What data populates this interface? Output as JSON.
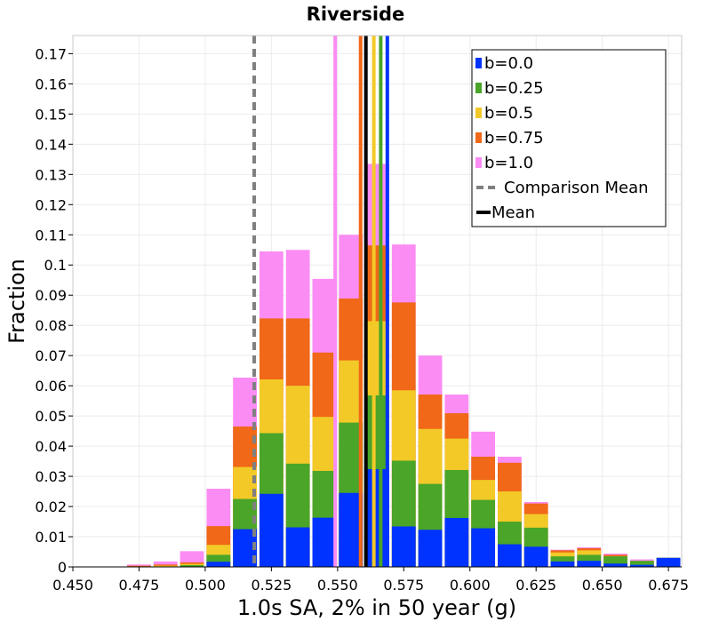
{
  "chart_data": {
    "type": "bar",
    "stacked": true,
    "title": "Riverside",
    "xlabel": "1.0s SA, 2% in 50 year (g)",
    "ylabel": "Fraction",
    "xlim": [
      0.45,
      0.68
    ],
    "ylim": [
      0,
      0.176
    ],
    "bin_width": 0.01,
    "x_ticks": [
      "0.450",
      "0.475",
      "0.500",
      "0.525",
      "0.550",
      "0.575",
      "0.600",
      "0.625",
      "0.650",
      "0.675"
    ],
    "x_tick_values": [
      0.45,
      0.475,
      0.5,
      0.525,
      0.55,
      0.575,
      0.6,
      0.625,
      0.65,
      0.675
    ],
    "y_ticks": [
      "0",
      "0.01",
      "0.02",
      "0.03",
      "0.04",
      "0.05",
      "0.06",
      "0.07",
      "0.08",
      "0.09",
      "0.1",
      "0.11",
      "0.12",
      "0.13",
      "0.14",
      "0.15",
      "0.16",
      "0.17"
    ],
    "y_tick_values": [
      0,
      0.01,
      0.02,
      0.03,
      0.04,
      0.05,
      0.06,
      0.07,
      0.08,
      0.09,
      0.1,
      0.11,
      0.12,
      0.13,
      0.14,
      0.15,
      0.16,
      0.17
    ],
    "grid": true,
    "legend_position": "top-right",
    "bin_centers": [
      0.455,
      0.465,
      0.475,
      0.485,
      0.495,
      0.505,
      0.515,
      0.525,
      0.535,
      0.545,
      0.555,
      0.565,
      0.575,
      0.585,
      0.595,
      0.605,
      0.615,
      0.625,
      0.635,
      0.645,
      0.655,
      0.665,
      0.675
    ],
    "series": [
      {
        "name": "b=0.0",
        "color": "#0033ff",
        "cumulative": [
          0,
          0,
          0,
          0,
          0,
          0.0017,
          0.0125,
          0.0242,
          0.0131,
          0.0163,
          0.0245,
          0.0324,
          0.0134,
          0.0123,
          0.0162,
          0.0128,
          0.0075,
          0.0067,
          0.0018,
          0.002,
          0.0011,
          0.0007,
          0.003
        ]
      },
      {
        "name": "b=0.25",
        "color": "#4aa528",
        "cumulative": [
          0,
          0,
          0,
          0,
          0.0006,
          0.004,
          0.0225,
          0.0443,
          0.0342,
          0.0318,
          0.0478,
          0.0568,
          0.0352,
          0.0275,
          0.0321,
          0.0222,
          0.015,
          0.013,
          0.0035,
          0.004,
          0.0035,
          0.002,
          0.003
        ]
      },
      {
        "name": "b=0.5",
        "color": "#f3c928",
        "cumulative": [
          0,
          0,
          0,
          0.0004,
          0.001,
          0.0073,
          0.0331,
          0.0621,
          0.06,
          0.0497,
          0.0684,
          0.0814,
          0.0585,
          0.0457,
          0.0425,
          0.0288,
          0.025,
          0.0175,
          0.0048,
          0.0055,
          0.0035,
          0.002,
          0.003
        ]
      },
      {
        "name": "b=0.75",
        "color": "#f06818",
        "cumulative": [
          0,
          0,
          0.0004,
          0.0008,
          0.0015,
          0.0135,
          0.0465,
          0.0823,
          0.0823,
          0.071,
          0.0889,
          0.1065,
          0.0876,
          0.0571,
          0.0509,
          0.0365,
          0.0345,
          0.021,
          0.0055,
          0.0062,
          0.004,
          0.002,
          0.003
        ]
      },
      {
        "name": "b=1.0",
        "color": "#fb8cf4",
        "cumulative": [
          0,
          0,
          0.0008,
          0.0018,
          0.0052,
          0.0259,
          0.0627,
          0.1045,
          0.105,
          0.0954,
          0.11,
          0.1335,
          0.1068,
          0.07,
          0.0571,
          0.0448,
          0.0365,
          0.0215,
          0.0057,
          0.0065,
          0.0044,
          0.0025,
          0.003
        ]
      }
    ],
    "vertical_lines": [
      {
        "name": "Comparison Mean",
        "x": 0.5185,
        "style": "dashed",
        "color": "#808080"
      },
      {
        "name": "b=1.0",
        "x": 0.5491,
        "style": "solid",
        "color": "#fb8cf4"
      },
      {
        "name": "b=0.75",
        "x": 0.5587,
        "style": "solid",
        "color": "#f06818"
      },
      {
        "name": "Mean",
        "x": 0.5607,
        "style": "solid",
        "color": "#000000"
      },
      {
        "name": "b=0.5",
        "x": 0.5637,
        "style": "solid",
        "color": "#f3c928"
      },
      {
        "name": "b=0.25",
        "x": 0.5663,
        "style": "solid",
        "color": "#4aa528"
      },
      {
        "name": "b=0.0",
        "x": 0.5688,
        "style": "solid",
        "color": "#0033ff"
      }
    ],
    "legend": [
      {
        "label": "b=0.0",
        "kind": "box",
        "color": "#0033ff"
      },
      {
        "label": "b=0.25",
        "kind": "box",
        "color": "#4aa528"
      },
      {
        "label": "b=0.5",
        "kind": "box",
        "color": "#f3c928"
      },
      {
        "label": "b=0.75",
        "kind": "box",
        "color": "#f06818"
      },
      {
        "label": "b=1.0",
        "kind": "box",
        "color": "#fb8cf4"
      },
      {
        "label": "Comparison Mean",
        "kind": "dash",
        "color": "#808080"
      },
      {
        "label": "Mean",
        "kind": "line",
        "color": "#000000"
      }
    ]
  }
}
